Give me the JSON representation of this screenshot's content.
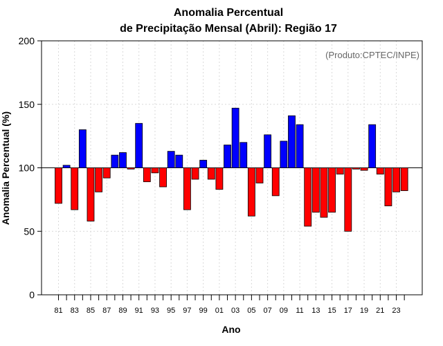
{
  "chart_data": {
    "type": "bar",
    "title": "Anomalia Percentual",
    "subtitle": "de Precipitação Mensal (Abril): Região 17",
    "xlabel": "Ano",
    "ylabel": "Anomalia Percentual (%)",
    "credit": "(Produto:CPTEC/INPE)",
    "ylim": [
      0,
      200
    ],
    "yticks": [
      0,
      50,
      100,
      150,
      200
    ],
    "baseline": 100,
    "grid": true,
    "colors": {
      "above": "#0000ff",
      "below": "#ff0000",
      "grid": "#d9d9d9",
      "axis": "#000000"
    },
    "categories": [
      "81",
      "82",
      "83",
      "84",
      "85",
      "86",
      "87",
      "88",
      "89",
      "90",
      "91",
      "92",
      "93",
      "94",
      "95",
      "96",
      "97",
      "98",
      "99",
      "00",
      "01",
      "02",
      "03",
      "04",
      "05",
      "06",
      "07",
      "08",
      "09",
      "10",
      "11",
      "12",
      "13",
      "14",
      "15",
      "16",
      "17",
      "18",
      "19",
      "20",
      "21",
      "22",
      "23",
      "24"
    ],
    "xtick_labels": [
      "81",
      "83",
      "85",
      "87",
      "89",
      "91",
      "93",
      "95",
      "97",
      "99",
      "01",
      "03",
      "05",
      "07",
      "09",
      "11",
      "13",
      "15",
      "17",
      "19",
      "21",
      "23"
    ],
    "values": [
      72,
      102,
      67,
      130,
      58,
      81,
      92,
      110,
      112,
      99,
      135,
      89,
      96,
      85,
      113,
      110,
      67,
      91,
      106,
      91,
      83,
      118,
      147,
      120,
      62,
      88,
      126,
      78,
      121,
      141,
      134,
      54,
      65,
      61,
      65,
      95,
      50,
      99,
      98,
      134,
      95,
      70,
      81,
      82
    ]
  }
}
